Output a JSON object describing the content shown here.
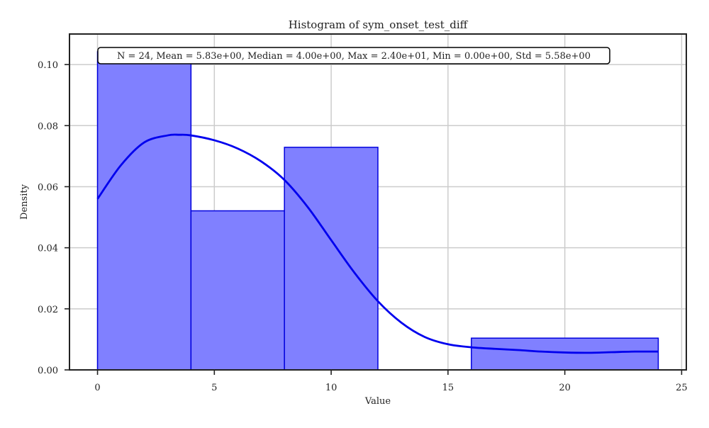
{
  "chart_data": {
    "type": "histogram",
    "title": "Histogram of sym_onset_test_diff",
    "xlabel": "Value",
    "ylabel": "Density",
    "xlim": [
      -1.2,
      25.2
    ],
    "ylim": [
      0,
      0.11
    ],
    "xticks": [
      0,
      5,
      10,
      15,
      20,
      25
    ],
    "yticks": [
      0.0,
      0.02,
      0.04,
      0.06,
      0.08,
      0.1
    ],
    "ytick_labels": [
      "0.00",
      "0.02",
      "0.04",
      "0.06",
      "0.08",
      "0.10"
    ],
    "grid": true,
    "bins": [
      {
        "x0": 0,
        "x1": 4,
        "density": 0.1042
      },
      {
        "x0": 4,
        "x1": 8,
        "density": 0.0521
      },
      {
        "x0": 8,
        "x1": 12,
        "density": 0.0729
      },
      {
        "x0": 12,
        "x1": 16,
        "density": 0.0
      },
      {
        "x0": 16,
        "x1": 24,
        "density": 0.0104
      }
    ],
    "kde": {
      "x": [
        0,
        1,
        2,
        3,
        3.5,
        4,
        5,
        6,
        7,
        8,
        9,
        10,
        11,
        12,
        13,
        14,
        15,
        16,
        17,
        18,
        19,
        20,
        21,
        22,
        23,
        24
      ],
      "y": [
        0.056,
        0.067,
        0.0745,
        0.0768,
        0.077,
        0.0768,
        0.0752,
        0.0725,
        0.0683,
        0.0622,
        0.0533,
        0.0425,
        0.0318,
        0.0225,
        0.0155,
        0.0108,
        0.0084,
        0.0074,
        0.0069,
        0.0065,
        0.006,
        0.0057,
        0.0056,
        0.0058,
        0.006,
        0.006
      ]
    },
    "annotation": "N = 24, Mean = 5.83e+00, Median = 4.00e+00, Max = 2.40e+01, Min = 0.00e+00, Std = 5.58e+00",
    "colors": {
      "bar_fill": "#8080ff",
      "bar_edge": "#0000dd",
      "kde_line": "#0000ee",
      "grid": "#cccccc",
      "axes": "#222222"
    }
  }
}
